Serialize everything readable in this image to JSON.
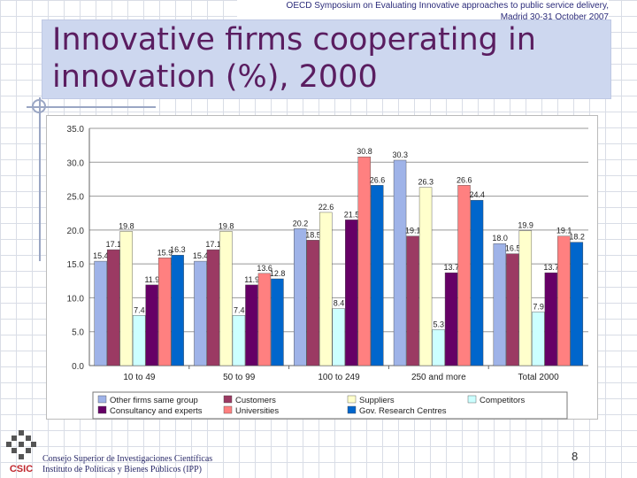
{
  "slide": {
    "header_line1": "OECD Symposium on Evaluating Innovative approaches to public service delivery,",
    "header_line2": "Madrid 30-31 October 2007",
    "title_line1": "Innovative firms cooperating in",
    "title_line2": "innovation (%), 2000",
    "footer_line1": "Consejo Superior de Investigaciones Científicas",
    "footer_line2": "Instituto de Políticas y Bienes Públicos (IPP)",
    "logo_text": "CSIC",
    "page_number": "8"
  },
  "chart_data": {
    "type": "bar",
    "title": "Innovative firms cooperating in innovation (%), 2000",
    "xlabel": "",
    "ylabel": "",
    "ylim": [
      0,
      35
    ],
    "yticks": [
      "0.0",
      "5.0",
      "10.0",
      "15.0",
      "20.0",
      "25.0",
      "30.0",
      "35.0"
    ],
    "categories": [
      "10 to 49",
      "50 to 99",
      "100 to 249",
      "250 and more",
      "Total 2000"
    ],
    "legend_position": "bottom",
    "series": [
      {
        "name": "Other firms same group",
        "color": "#9fb3e8",
        "values": [
          15.4,
          15.4,
          20.2,
          30.3,
          18.0
        ]
      },
      {
        "name": "Customers",
        "color": "#9b3a63",
        "values": [
          17.1,
          17.1,
          18.5,
          19.1,
          16.5
        ]
      },
      {
        "name": "Suppliers",
        "color": "#ffffcc",
        "values": [
          19.8,
          19.8,
          22.6,
          26.3,
          19.9
        ]
      },
      {
        "name": "Competitors",
        "color": "#ccffff",
        "values": [
          7.4,
          7.4,
          8.4,
          5.3,
          7.9
        ]
      },
      {
        "name": "Consultancy and experts",
        "color": "#660066",
        "values": [
          11.9,
          11.9,
          21.5,
          13.7,
          13.7
        ]
      },
      {
        "name": "Universities",
        "color": "#ff8080",
        "values": [
          15.9,
          13.6,
          30.8,
          26.6,
          19.1
        ]
      },
      {
        "name": "Gov. Research Centres",
        "color": "#0066cc",
        "values": [
          16.3,
          12.8,
          26.6,
          24.4,
          18.2
        ]
      }
    ],
    "data_labels": [
      [
        "15.4",
        "17.1",
        "19.8",
        "7.4",
        "11.9",
        "15.9",
        "16.3"
      ],
      [
        "15.4",
        "17.1",
        "19.8",
        "7.4",
        "11.9",
        "13.6",
        "12.8"
      ],
      [
        "20.2",
        "18.5",
        "22.6",
        "8.4",
        "21.5",
        "30.8",
        "26.6"
      ],
      [
        "30.3",
        "19.1",
        "26.3",
        "5.3",
        "13.7",
        "26.6",
        "24.4"
      ],
      [
        "18.0",
        "16.5",
        "19.9",
        "7.9",
        "13.7",
        "19.1",
        "18.2"
      ]
    ]
  }
}
